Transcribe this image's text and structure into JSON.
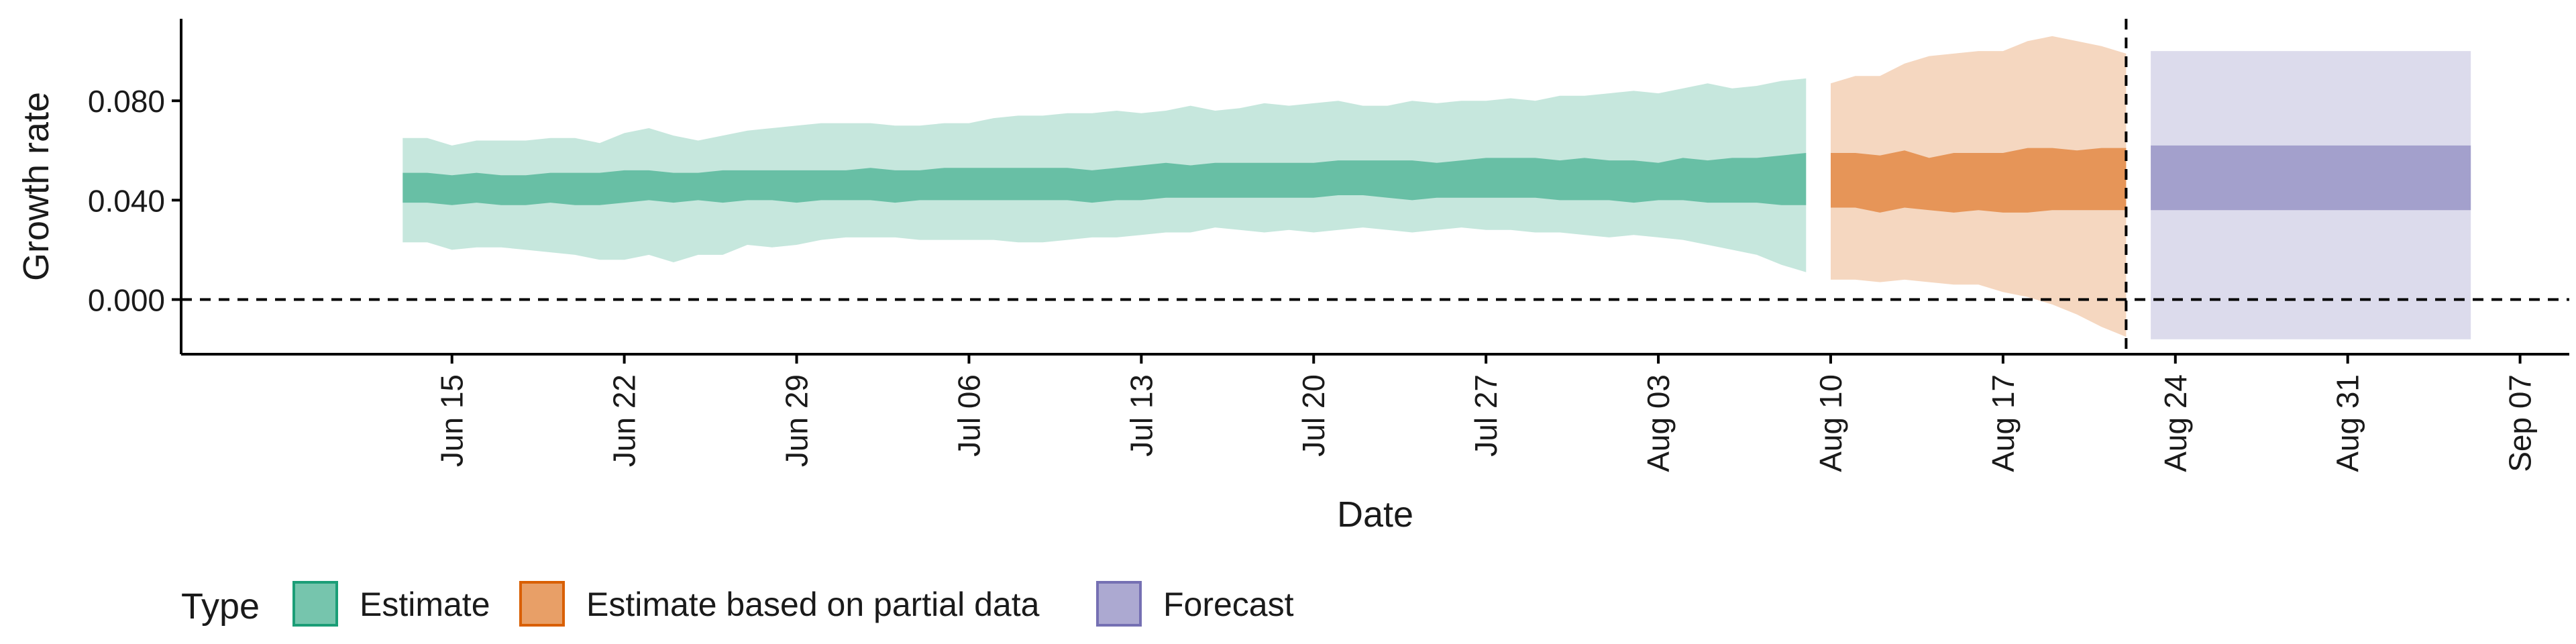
{
  "chart_data": {
    "type": "area",
    "title": "",
    "xlabel": "Date",
    "ylabel": "Growth rate",
    "x_range": [
      "2020-06-04",
      "2020-09-09"
    ],
    "ylim": [
      -0.022,
      0.113
    ],
    "x_ticks": [
      {
        "date": "2020-06-15",
        "label": "Jun 15"
      },
      {
        "date": "2020-06-22",
        "label": "Jun 22"
      },
      {
        "date": "2020-06-29",
        "label": "Jun 29"
      },
      {
        "date": "2020-07-06",
        "label": "Jul 06"
      },
      {
        "date": "2020-07-13",
        "label": "Jul 13"
      },
      {
        "date": "2020-07-20",
        "label": "Jul 20"
      },
      {
        "date": "2020-07-27",
        "label": "Jul 27"
      },
      {
        "date": "2020-08-03",
        "label": "Aug 03"
      },
      {
        "date": "2020-08-10",
        "label": "Aug 10"
      },
      {
        "date": "2020-08-17",
        "label": "Aug 17"
      },
      {
        "date": "2020-08-24",
        "label": "Aug 24"
      },
      {
        "date": "2020-08-31",
        "label": "Aug 31"
      },
      {
        "date": "2020-09-07",
        "label": "Sep 07"
      }
    ],
    "y_ticks": [
      {
        "value": 0.0,
        "label": "0.000"
      },
      {
        "value": 0.04,
        "label": "0.040"
      },
      {
        "value": 0.08,
        "label": "0.080"
      }
    ],
    "grid": false,
    "legend_position": "bottom-left",
    "legend_title": "Type",
    "reference_lines": {
      "horizontal_y": 0.0,
      "vertical_date": "2020-08-22"
    },
    "series": [
      {
        "name": "Estimate",
        "color": "#1b9e77",
        "dates": [
          "2020-06-13",
          "2020-06-14",
          "2020-06-15",
          "2020-06-16",
          "2020-06-17",
          "2020-06-18",
          "2020-06-19",
          "2020-06-20",
          "2020-06-21",
          "2020-06-22",
          "2020-06-23",
          "2020-06-24",
          "2020-06-25",
          "2020-06-26",
          "2020-06-27",
          "2020-06-28",
          "2020-06-29",
          "2020-06-30",
          "2020-07-01",
          "2020-07-02",
          "2020-07-03",
          "2020-07-04",
          "2020-07-05",
          "2020-07-06",
          "2020-07-07",
          "2020-07-08",
          "2020-07-09",
          "2020-07-10",
          "2020-07-11",
          "2020-07-12",
          "2020-07-13",
          "2020-07-14",
          "2020-07-15",
          "2020-07-16",
          "2020-07-17",
          "2020-07-18",
          "2020-07-19",
          "2020-07-20",
          "2020-07-21",
          "2020-07-22",
          "2020-07-23",
          "2020-07-24",
          "2020-07-25",
          "2020-07-26",
          "2020-07-27",
          "2020-07-28",
          "2020-07-29",
          "2020-07-30",
          "2020-07-31",
          "2020-08-01",
          "2020-08-02",
          "2020-08-03",
          "2020-08-04",
          "2020-08-05",
          "2020-08-06",
          "2020-08-07",
          "2020-08-08",
          "2020-08-09"
        ],
        "lower_90": [
          0.023,
          0.023,
          0.02,
          0.021,
          0.021,
          0.02,
          0.019,
          0.018,
          0.016,
          0.016,
          0.018,
          0.015,
          0.018,
          0.018,
          0.022,
          0.021,
          0.022,
          0.024,
          0.025,
          0.025,
          0.025,
          0.024,
          0.024,
          0.024,
          0.024,
          0.023,
          0.023,
          0.024,
          0.025,
          0.025,
          0.026,
          0.027,
          0.027,
          0.029,
          0.028,
          0.027,
          0.028,
          0.027,
          0.028,
          0.029,
          0.028,
          0.027,
          0.028,
          0.029,
          0.028,
          0.028,
          0.027,
          0.027,
          0.026,
          0.025,
          0.026,
          0.025,
          0.024,
          0.022,
          0.02,
          0.018,
          0.014,
          0.011
        ],
        "upper_90": [
          0.065,
          0.065,
          0.062,
          0.064,
          0.064,
          0.064,
          0.065,
          0.065,
          0.063,
          0.067,
          0.069,
          0.066,
          0.064,
          0.066,
          0.068,
          0.069,
          0.07,
          0.071,
          0.071,
          0.071,
          0.07,
          0.07,
          0.071,
          0.071,
          0.073,
          0.074,
          0.074,
          0.075,
          0.075,
          0.076,
          0.075,
          0.076,
          0.078,
          0.076,
          0.077,
          0.079,
          0.078,
          0.079,
          0.08,
          0.078,
          0.078,
          0.08,
          0.079,
          0.08,
          0.08,
          0.081,
          0.08,
          0.082,
          0.082,
          0.083,
          0.084,
          0.083,
          0.085,
          0.087,
          0.085,
          0.086,
          0.088,
          0.089
        ],
        "lower_50": [
          0.039,
          0.039,
          0.038,
          0.039,
          0.038,
          0.038,
          0.039,
          0.038,
          0.038,
          0.039,
          0.04,
          0.039,
          0.04,
          0.039,
          0.04,
          0.04,
          0.039,
          0.04,
          0.04,
          0.04,
          0.039,
          0.04,
          0.04,
          0.04,
          0.04,
          0.04,
          0.04,
          0.04,
          0.039,
          0.04,
          0.04,
          0.041,
          0.041,
          0.041,
          0.041,
          0.041,
          0.041,
          0.041,
          0.042,
          0.042,
          0.041,
          0.04,
          0.041,
          0.041,
          0.041,
          0.041,
          0.041,
          0.04,
          0.04,
          0.04,
          0.039,
          0.04,
          0.04,
          0.039,
          0.039,
          0.039,
          0.038,
          0.038
        ],
        "upper_50": [
          0.051,
          0.051,
          0.05,
          0.051,
          0.05,
          0.05,
          0.051,
          0.051,
          0.051,
          0.052,
          0.052,
          0.051,
          0.051,
          0.052,
          0.052,
          0.052,
          0.052,
          0.052,
          0.052,
          0.053,
          0.052,
          0.052,
          0.053,
          0.053,
          0.053,
          0.053,
          0.053,
          0.053,
          0.052,
          0.053,
          0.054,
          0.055,
          0.054,
          0.055,
          0.055,
          0.055,
          0.055,
          0.055,
          0.056,
          0.056,
          0.056,
          0.056,
          0.055,
          0.056,
          0.057,
          0.057,
          0.057,
          0.056,
          0.057,
          0.056,
          0.056,
          0.055,
          0.057,
          0.056,
          0.057,
          0.057,
          0.058,
          0.059
        ]
      },
      {
        "name": "Estimate based on partial data",
        "color": "#d95f02",
        "dates": [
          "2020-08-10",
          "2020-08-11",
          "2020-08-12",
          "2020-08-13",
          "2020-08-14",
          "2020-08-15",
          "2020-08-16",
          "2020-08-17",
          "2020-08-18",
          "2020-08-19",
          "2020-08-20",
          "2020-08-21",
          "2020-08-22"
        ],
        "lower_90": [
          0.008,
          0.008,
          0.007,
          0.008,
          0.007,
          0.006,
          0.006,
          0.003,
          0.001,
          -0.002,
          -0.006,
          -0.011,
          -0.015
        ],
        "upper_90": [
          0.087,
          0.09,
          0.09,
          0.095,
          0.098,
          0.099,
          0.1,
          0.1,
          0.104,
          0.106,
          0.104,
          0.102,
          0.099
        ],
        "lower_50": [
          0.037,
          0.037,
          0.035,
          0.037,
          0.036,
          0.035,
          0.036,
          0.035,
          0.035,
          0.036,
          0.036,
          0.036,
          0.036
        ],
        "upper_50": [
          0.059,
          0.059,
          0.058,
          0.06,
          0.057,
          0.059,
          0.059,
          0.059,
          0.061,
          0.061,
          0.06,
          0.061,
          0.061
        ]
      },
      {
        "name": "Forecast",
        "color": "#7570b3",
        "dates": [
          "2020-08-23",
          "2020-09-05"
        ],
        "lower_90": [
          -0.016,
          -0.016
        ],
        "upper_90": [
          0.1,
          0.1
        ],
        "lower_50": [
          0.036,
          0.036
        ],
        "upper_50": [
          0.062,
          0.062
        ]
      }
    ]
  }
}
